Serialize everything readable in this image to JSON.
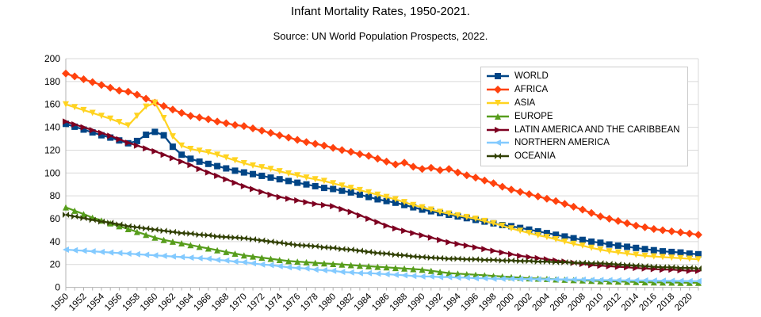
{
  "chart": {
    "title": "Infant Mortality Rates, 1950-2021.",
    "subtitle": "Source: UN World Population Prospects, 2022."
  },
  "chart_data": {
    "type": "line",
    "title": "Infant Mortality Rates, 1950-2021.",
    "subtitle": "Source: UN World Population Prospects, 2022.",
    "xlabel": "",
    "ylabel": "",
    "ylim": [
      0,
      200
    ],
    "y_ticks": [
      0,
      20,
      40,
      60,
      80,
      100,
      120,
      140,
      160,
      180,
      200
    ],
    "grid": "horizontal",
    "legend_position": "top-right",
    "grid_color": "#d9d9d9",
    "axis_color": "#b3b3b3",
    "x": [
      1950,
      1951,
      1952,
      1953,
      1954,
      1955,
      1956,
      1957,
      1958,
      1959,
      1960,
      1961,
      1962,
      1963,
      1964,
      1965,
      1966,
      1967,
      1968,
      1969,
      1970,
      1971,
      1972,
      1973,
      1974,
      1975,
      1976,
      1977,
      1978,
      1979,
      1980,
      1981,
      1982,
      1983,
      1984,
      1985,
      1986,
      1987,
      1988,
      1989,
      1990,
      1991,
      1992,
      1993,
      1994,
      1995,
      1996,
      1997,
      1998,
      1999,
      2000,
      2001,
      2002,
      2003,
      2004,
      2005,
      2006,
      2007,
      2008,
      2009,
      2010,
      2011,
      2012,
      2013,
      2014,
      2015,
      2016,
      2017,
      2018,
      2019,
      2020,
      2021
    ],
    "x_tick_labels": [
      "1950",
      "1952",
      "1954",
      "1956",
      "1958",
      "1960",
      "1962",
      "1964",
      "1966",
      "1968",
      "1970",
      "1972",
      "1974",
      "1976",
      "1978",
      "1980",
      "1982",
      "1984",
      "1986",
      "1988",
      "1990",
      "1992",
      "1994",
      "1996",
      "1998",
      "2000",
      "2002",
      "2004",
      "2006",
      "2008",
      "2010",
      "2012",
      "2014",
      "2016",
      "2018",
      "2020"
    ],
    "series": [
      {
        "name": "WORLD",
        "color": "#004586",
        "marker": "square",
        "values": [
          143,
          140.5,
          138,
          135.5,
          133,
          131,
          128.5,
          126,
          128,
          133.5,
          136,
          133,
          123,
          116,
          112.5,
          110,
          108,
          106,
          104,
          102,
          100.5,
          99,
          97.5,
          96,
          94.5,
          93,
          91.5,
          90,
          88.5,
          87,
          86,
          84.5,
          83,
          81,
          79,
          77,
          75.5,
          74,
          72,
          70,
          68,
          66.5,
          65,
          63.5,
          62,
          60.5,
          59,
          57.5,
          56,
          54.5,
          53.5,
          52,
          50.5,
          49,
          47.5,
          46,
          44.5,
          43,
          41.5,
          40,
          39,
          37.5,
          36.5,
          35.5,
          34.5,
          33.5,
          32.5,
          31.5,
          31,
          30.5,
          29.5,
          29
        ]
      },
      {
        "name": "AFRICA",
        "color": "#ff420e",
        "marker": "diamond",
        "values": [
          187,
          184.5,
          182,
          179.5,
          177,
          174.5,
          172,
          171,
          168.5,
          165,
          161.5,
          158.5,
          155.5,
          152.5,
          150,
          148.5,
          147,
          145,
          143.5,
          142,
          141,
          139,
          137,
          135,
          133,
          131,
          129,
          127,
          125.5,
          124,
          122,
          120,
          118.5,
          116.5,
          115,
          112.5,
          110,
          107.5,
          109,
          105.5,
          103.5,
          104.5,
          102.5,
          103.5,
          100.5,
          98,
          96,
          93.5,
          91,
          88,
          85.5,
          83.5,
          81.5,
          79.5,
          77.5,
          75.5,
          73,
          70.5,
          68,
          65,
          62,
          60,
          58,
          56,
          54,
          52.5,
          51,
          50,
          49,
          48,
          47,
          46
        ]
      },
      {
        "name": "ASIA",
        "color": "#ffd320",
        "marker": "arrow-down",
        "values": [
          160,
          157.5,
          155,
          152.5,
          150,
          147.5,
          144.5,
          141.5,
          150,
          158,
          161.5,
          148,
          132,
          124,
          121,
          119.5,
          118,
          116,
          113.5,
          111,
          108.5,
          106.5,
          105,
          103.5,
          101.5,
          99.5,
          98,
          96,
          94.5,
          93,
          91,
          89,
          87,
          85,
          83,
          81,
          79,
          77,
          74.5,
          72,
          70,
          68,
          66,
          64.5,
          63,
          61.5,
          60,
          58,
          56,
          54,
          51.5,
          49.5,
          47.5,
          45.5,
          44,
          42,
          40,
          38,
          36.5,
          34.5,
          33,
          31.5,
          30.5,
          29.5,
          28.5,
          27.5,
          27,
          26.5,
          26,
          25.5,
          25,
          24.5
        ]
      },
      {
        "name": "EUROPE",
        "color": "#579d1c",
        "marker": "arrow-up",
        "values": [
          70,
          67,
          64,
          61,
          58.5,
          56,
          53.5,
          51,
          48.5,
          46,
          43.5,
          41.5,
          40,
          38.5,
          37,
          35.5,
          34,
          32.5,
          31,
          29.5,
          28,
          27,
          26,
          25,
          24,
          23,
          22.5,
          22,
          21.5,
          21,
          20.5,
          20,
          19.5,
          19,
          18.5,
          18,
          17.5,
          17,
          16.5,
          16,
          15.5,
          14.5,
          13.5,
          12.5,
          12,
          11.5,
          11,
          10.5,
          10,
          9.5,
          9,
          8.5,
          8,
          7.7,
          7.4,
          7,
          6.7,
          6.4,
          6.1,
          5.8,
          5.5,
          5.3,
          5.1,
          4.9,
          4.7,
          4.5,
          4.4,
          4.3,
          4.2,
          4.1,
          4,
          4
        ]
      },
      {
        "name": "LATIN AMERICA AND THE CARIBBEAN",
        "color": "#7e0021",
        "marker": "arrow-right",
        "values": [
          145,
          142.5,
          140,
          137.5,
          135,
          132.5,
          129.5,
          126.5,
          124,
          121.5,
          119,
          116,
          113,
          110,
          107,
          103.5,
          100.5,
          97.5,
          94.5,
          91.5,
          88.5,
          86,
          83.5,
          81,
          79,
          77.5,
          76,
          74.5,
          73,
          72,
          71,
          68.5,
          66,
          63,
          60,
          57,
          54,
          51.5,
          49.5,
          47.5,
          45.5,
          43.5,
          41.5,
          39.5,
          38,
          36.5,
          35,
          33.5,
          32,
          30.5,
          29,
          27.5,
          26.5,
          25.5,
          24.5,
          23.5,
          22.5,
          21.5,
          20.5,
          19.5,
          19,
          18.5,
          18,
          17.5,
          17,
          16.5,
          16,
          15.5,
          15.5,
          15,
          14.5,
          14.5
        ]
      },
      {
        "name": "NORTHERN AMERICA",
        "color": "#83caff",
        "marker": "arrow-left",
        "values": [
          33,
          32.5,
          32,
          31.5,
          31,
          30.5,
          30,
          29.5,
          29,
          28.5,
          28,
          27.5,
          27,
          26.5,
          26,
          25.5,
          25,
          24,
          23.5,
          22.5,
          22,
          21,
          20,
          19.5,
          18.5,
          17.5,
          17,
          16.5,
          15.5,
          15,
          14.5,
          13.5,
          13,
          12.5,
          12.5,
          12,
          11.5,
          11,
          10.5,
          10,
          9.5,
          9.5,
          9,
          9,
          8.5,
          8.5,
          8,
          8,
          7.5,
          7.5,
          7.5,
          7.3,
          7.2,
          7.1,
          7,
          7,
          6.9,
          6.8,
          6.7,
          6.5,
          6.4,
          6.3,
          6.2,
          6.1,
          6,
          6,
          5.9,
          5.8,
          5.7,
          5.6,
          5.5,
          5.4
        ]
      },
      {
        "name": "OCEANIA",
        "color": "#314004",
        "marker": "bowtie",
        "values": [
          63.5,
          62,
          60.5,
          59,
          57.5,
          56.5,
          55,
          53.5,
          52.5,
          51.5,
          50.5,
          49.5,
          48.5,
          47.5,
          47,
          46,
          45.5,
          44.5,
          44,
          43.5,
          43,
          42,
          41,
          40,
          39,
          38,
          37,
          36.5,
          36,
          35,
          34.5,
          33.5,
          33,
          32,
          31,
          30,
          29.5,
          28.5,
          28,
          27,
          26.5,
          26,
          25.5,
          25,
          25,
          24.5,
          24.5,
          24,
          24,
          23.5,
          23.5,
          23,
          23,
          22.5,
          22.5,
          22,
          22,
          21.5,
          21.5,
          21,
          21,
          20.5,
          20,
          19.5,
          19,
          18.5,
          18,
          17.5,
          17.5,
          17,
          17,
          16.5
        ]
      }
    ]
  }
}
